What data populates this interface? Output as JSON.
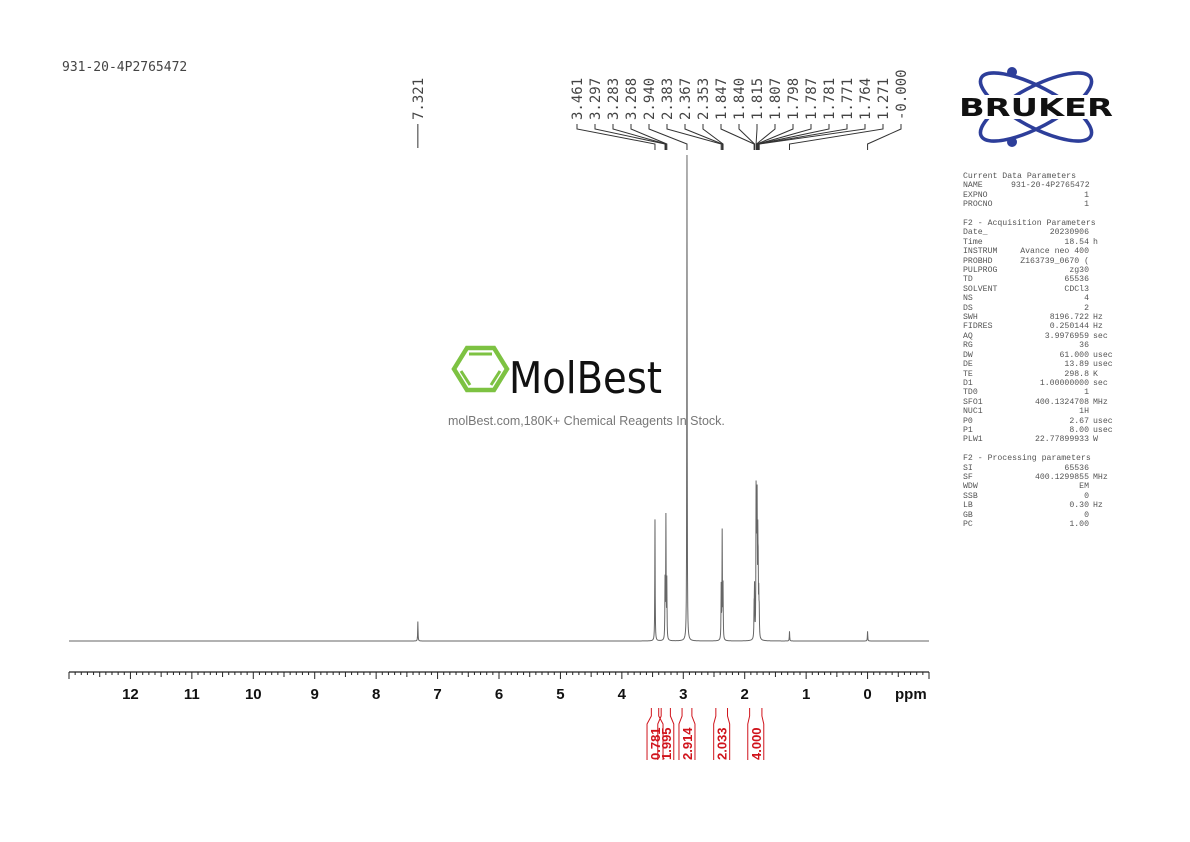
{
  "sample_title": "931-20-4P2765472",
  "logos": {
    "bruker": "BRUKER",
    "molbest": "MolBest",
    "molbest_tagline": "molBest.com,180K+ Chemical Reagents In Stock.",
    "molbest_color": "#7dc242",
    "bruker_color": "#2d3e9a"
  },
  "parameters": {
    "current": {
      "title": "Current Data Parameters",
      "rows": [
        [
          "NAME",
          "931-20-4P2765472",
          ""
        ],
        [
          "EXPNO",
          "1",
          ""
        ],
        [
          "PROCNO",
          "1",
          ""
        ]
      ]
    },
    "acquisition": {
      "title": "F2 - Acquisition Parameters",
      "rows": [
        [
          "Date_",
          "20230906",
          ""
        ],
        [
          "Time",
          "18.54",
          "h"
        ],
        [
          "INSTRUM",
          "Avance neo 400",
          ""
        ],
        [
          "PROBHD",
          "Z163739_0670 (",
          ""
        ],
        [
          "PULPROG",
          "zg30",
          ""
        ],
        [
          "TD",
          "65536",
          ""
        ],
        [
          "SOLVENT",
          "CDCl3",
          ""
        ],
        [
          "NS",
          "4",
          ""
        ],
        [
          "DS",
          "2",
          ""
        ],
        [
          "SWH",
          "8196.722",
          "Hz"
        ],
        [
          "FIDRES",
          "0.250144",
          "Hz"
        ],
        [
          "AQ",
          "3.9976959",
          "sec"
        ],
        [
          "RG",
          "36",
          ""
        ],
        [
          "DW",
          "61.000",
          "usec"
        ],
        [
          "DE",
          "13.89",
          "usec"
        ],
        [
          "TE",
          "298.8",
          "K"
        ],
        [
          "D1",
          "1.00000000",
          "sec"
        ],
        [
          "TD0",
          "1",
          ""
        ],
        [
          "SFO1",
          "400.1324708",
          "MHz"
        ],
        [
          "NUC1",
          "1H",
          ""
        ],
        [
          "P0",
          "2.67",
          "usec"
        ],
        [
          "P1",
          "8.00",
          "usec"
        ],
        [
          "PLW1",
          "22.77899933",
          "W"
        ]
      ]
    },
    "processing": {
      "title": "F2 - Processing parameters",
      "rows": [
        [
          "SI",
          "65536",
          ""
        ],
        [
          "SF",
          "400.1299855",
          "MHz"
        ],
        [
          "WDW",
          "EM",
          ""
        ],
        [
          "SSB",
          "0",
          ""
        ],
        [
          "LB",
          "0.30",
          "Hz"
        ],
        [
          "GB",
          "0",
          ""
        ],
        [
          "PC",
          "1.00",
          ""
        ]
      ]
    }
  },
  "chart_data": {
    "type": "line",
    "title": "",
    "xlabel": "ppm",
    "xlim": [
      13.0,
      -1.0
    ],
    "x_reversed": true,
    "x_ticks": [
      12,
      11,
      10,
      9,
      8,
      7,
      6,
      5,
      4,
      3,
      2,
      1,
      0
    ],
    "x_tick_labels": [
      "12",
      "11",
      "10",
      "9",
      "8",
      "7",
      "6",
      "5",
      "4",
      "3",
      "2",
      "1",
      "0"
    ],
    "minor_tick_step": 0.1,
    "grid": false,
    "line_color": "#666666",
    "integral_color": "#d0141c",
    "peaks_relative_intensity": [
      {
        "ppm": 7.321,
        "intensity": 0.04
      },
      {
        "ppm": 3.461,
        "intensity": 0.25
      },
      {
        "ppm": 3.297,
        "intensity": 0.12
      },
      {
        "ppm": 3.283,
        "intensity": 0.25
      },
      {
        "ppm": 3.268,
        "intensity": 0.12
      },
      {
        "ppm": 2.94,
        "intensity": 1.0
      },
      {
        "ppm": 2.383,
        "intensity": 0.11
      },
      {
        "ppm": 2.367,
        "intensity": 0.22
      },
      {
        "ppm": 2.353,
        "intensity": 0.11
      },
      {
        "ppm": 1.847,
        "intensity": 0.06
      },
      {
        "ppm": 1.84,
        "intensity": 0.1
      },
      {
        "ppm": 1.815,
        "intensity": 0.28
      },
      {
        "ppm": 1.807,
        "intensity": 0.2
      },
      {
        "ppm": 1.798,
        "intensity": 0.26
      },
      {
        "ppm": 1.787,
        "intensity": 0.18
      },
      {
        "ppm": 1.781,
        "intensity": 0.12
      },
      {
        "ppm": 1.771,
        "intensity": 0.08
      },
      {
        "ppm": 1.764,
        "intensity": 0.05
      },
      {
        "ppm": 1.271,
        "intensity": 0.02
      },
      {
        "ppm": 0.0,
        "intensity": 0.02
      }
    ],
    "peak_labels": [
      "7.321",
      "3.461",
      "3.297",
      "3.283",
      "3.268",
      "2.940",
      "2.383",
      "2.367",
      "2.353",
      "1.847",
      "1.840",
      "1.815",
      "1.807",
      "1.798",
      "1.787",
      "1.781",
      "1.771",
      "1.764",
      "1.271",
      "-0.000"
    ],
    "integrals": [
      {
        "from": 3.52,
        "to": 3.4,
        "value": "0.781"
      },
      {
        "from": 3.36,
        "to": 3.21,
        "value": "1.995"
      },
      {
        "from": 3.02,
        "to": 2.86,
        "value": "2.914"
      },
      {
        "from": 2.47,
        "to": 2.28,
        "value": "2.033"
      },
      {
        "from": 1.92,
        "to": 1.72,
        "value": "4.000"
      }
    ]
  }
}
